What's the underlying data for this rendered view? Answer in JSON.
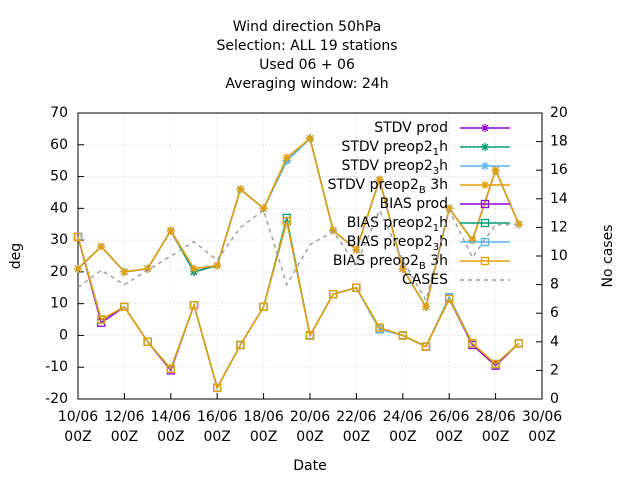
{
  "chart_data": {
    "type": "line",
    "title": [
      "Wind direction 50hPa",
      "Selection: ALL      19 stations",
      "Used  06 + 06",
      "Averaging window: 24h"
    ],
    "xlabel": "Date",
    "ylabel": "deg",
    "y2label": "No cases",
    "x": [
      "10/06 00Z",
      "11/06 00Z",
      "12/06 00Z",
      "13/06 00Z",
      "14/06 00Z",
      "15/06 00Z",
      "16/06 00Z",
      "17/06 00Z",
      "18/06 00Z",
      "19/06 00Z",
      "20/06 00Z",
      "21/06 00Z",
      "22/06 00Z",
      "23/06 00Z",
      "24/06 00Z",
      "25/06 00Z",
      "26/06 00Z",
      "27/06 00Z",
      "28/06 00Z",
      "29/06 00Z"
    ],
    "xlim": [
      "10/06 00Z",
      "30/06 00Z"
    ],
    "xticks": [
      "10/06 00Z",
      "12/06 00Z",
      "14/06 00Z",
      "16/06 00Z",
      "18/06 00Z",
      "20/06 00Z",
      "22/06 00Z",
      "24/06 00Z",
      "26/06 00Z",
      "28/06 00Z",
      "30/06 00Z"
    ],
    "ylim": [
      -20,
      70
    ],
    "yticks": [
      -20,
      -10,
      0,
      10,
      20,
      30,
      40,
      50,
      60,
      70
    ],
    "y2lim": [
      0,
      20
    ],
    "y2ticks": [
      0,
      2,
      4,
      6,
      8,
      10,
      12,
      14,
      16,
      18,
      20
    ],
    "series": [
      {
        "name": "STDV prod",
        "color": "#9400d3",
        "marker": "star",
        "values": [
          21,
          28,
          20,
          21,
          33,
          20,
          22,
          46,
          40,
          55,
          62,
          33,
          27,
          49,
          21,
          9,
          40,
          30,
          52,
          35
        ]
      },
      {
        "name": "STDV preop2_1h",
        "color": "#009e73",
        "marker": "star",
        "values": [
          21,
          28,
          20,
          21,
          33,
          20,
          22,
          46,
          40,
          55,
          62,
          33,
          27,
          49,
          21,
          9,
          40,
          30,
          52,
          35
        ]
      },
      {
        "name": "STDV preop2_3h",
        "color": "#56b4e9",
        "marker": "star",
        "values": [
          21,
          28,
          20,
          21,
          33,
          21,
          22,
          46,
          40,
          55,
          62,
          33,
          27,
          49,
          21,
          9,
          40,
          30,
          52,
          35
        ]
      },
      {
        "name": "STDV preop2_B 3h",
        "color": "#e69f00",
        "marker": "star",
        "values": [
          21,
          28,
          20,
          21,
          33,
          21,
          22,
          46,
          40,
          56,
          62,
          33,
          27,
          49,
          21,
          9,
          40,
          30,
          52,
          35
        ]
      },
      {
        "name": "BIAS prod",
        "color": "#9400d3",
        "marker": "square",
        "values": [
          31,
          4,
          9,
          -2,
          -11,
          9.5,
          -16.5,
          -3,
          9,
          36,
          0,
          13,
          15,
          2,
          0,
          -3.5,
          11.5,
          -3,
          -9.5,
          -2.5
        ]
      },
      {
        "name": "BIAS preop2_1h",
        "color": "#009e73",
        "marker": "square",
        "values": [
          31,
          5,
          9,
          -2,
          -10.5,
          9.5,
          -16.5,
          -3,
          9,
          37,
          0,
          13,
          15,
          2,
          0,
          -3.5,
          12,
          -2.5,
          -9,
          -2.5
        ]
      },
      {
        "name": "BIAS preop2_3h",
        "color": "#56b4e9",
        "marker": "square",
        "values": [
          31,
          5,
          9,
          -2,
          -10.5,
          9.5,
          -16.5,
          -3,
          9,
          36,
          0,
          13,
          15,
          2,
          0,
          -3.5,
          12,
          -2.5,
          -9,
          -2.5
        ]
      },
      {
        "name": "BIAS preop2_B 3h",
        "color": "#e69f00",
        "marker": "square",
        "values": [
          31,
          5,
          9,
          -2,
          -10.5,
          9.5,
          -16.5,
          -3,
          9,
          36,
          0,
          13,
          15,
          2.5,
          0,
          -3.5,
          11.5,
          -2.5,
          -9,
          -2.5
        ]
      },
      {
        "name": "CASES",
        "color": "#a0a0a0",
        "marker": "none",
        "dashed": true,
        "axis": "y2",
        "values": [
          7.8,
          9,
          8,
          9,
          10,
          11,
          9.7,
          12,
          13.2,
          8,
          10.8,
          11.7,
          9.4,
          13.2,
          9.7,
          6.9,
          13.2,
          9.9,
          12.2,
          12.2
        ]
      }
    ]
  }
}
